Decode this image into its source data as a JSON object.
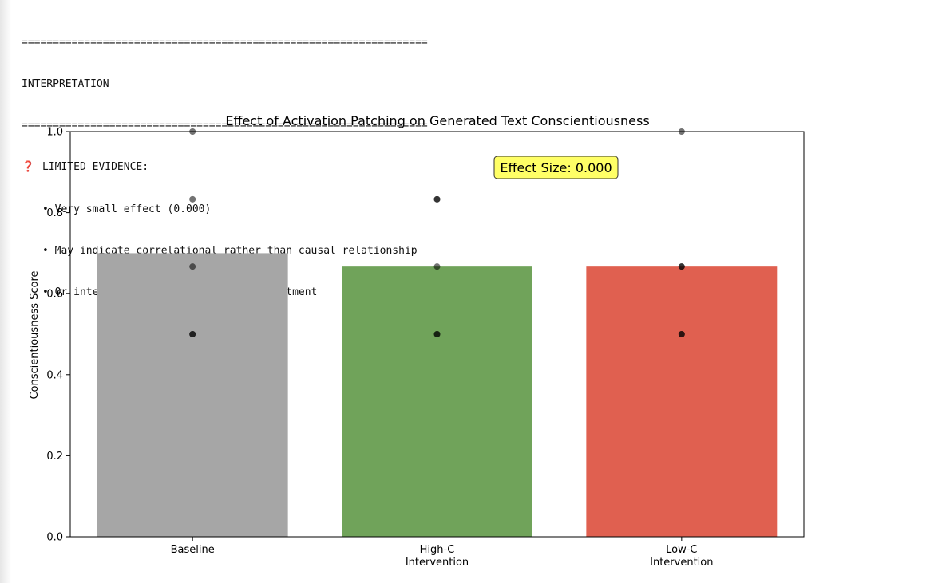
{
  "output": {
    "rule": "=================================================================",
    "heading": "INTERPRETATION",
    "evidence_icon": "question-mark-icon",
    "evidence_icon_glyph": "❓",
    "evidence_label": "LIMITED EVIDENCE:",
    "bullets": [
      "• Very small effect (0.000)",
      "• May indicate correlational rather than causal relationship",
      "• Or intervention values may need adjustment"
    ]
  },
  "chart_data": {
    "type": "bar",
    "title": "Effect of Activation Patching on Generated Text Conscientiousness",
    "xlabel": "",
    "ylabel": "Conscientiousness Score",
    "categories": [
      "Baseline",
      "High-C\nIntervention",
      "Low-C\nIntervention"
    ],
    "values": [
      0.7,
      0.667,
      0.667
    ],
    "colors": [
      "#a6a6a6",
      "#70a35a",
      "#e06050"
    ],
    "points": [
      [
        1.0,
        0.833,
        0.667,
        0.5,
        0.5
      ],
      [
        0.833,
        0.833,
        0.667,
        0.5,
        0.5
      ],
      [
        1.0,
        0.667,
        0.667,
        0.5,
        0.5
      ]
    ],
    "ylim": [
      0,
      1.0
    ],
    "yticks": [
      0.0,
      0.2,
      0.4,
      0.6,
      0.8,
      1.0
    ],
    "ytick_labels": [
      "0.0",
      "0.2",
      "0.4",
      "0.6",
      "0.8",
      "1.0"
    ],
    "grid": false,
    "annotation": {
      "text": "Effect Size: 0.000",
      "background": "#ffff66"
    }
  }
}
